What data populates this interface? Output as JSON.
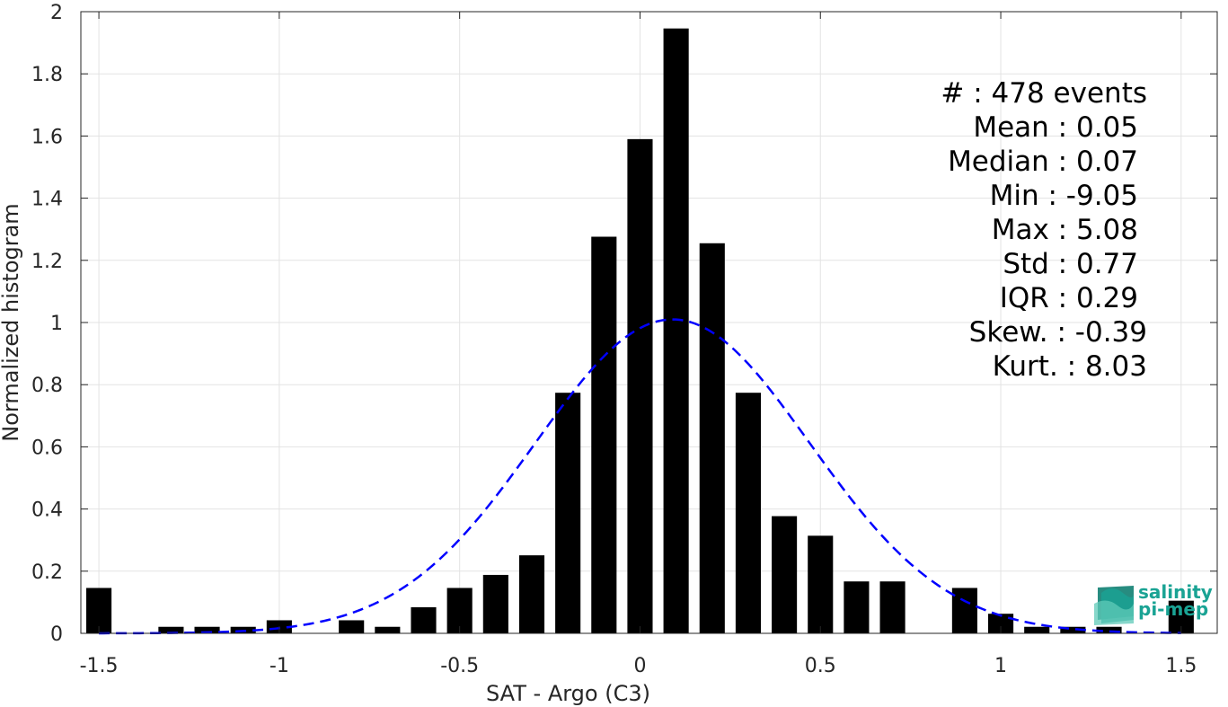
{
  "chart_data": {
    "type": "bar",
    "xlabel": "SAT - Argo (C3)",
    "ylabel": "Normalized histogram",
    "xlim": [
      -1.55,
      1.6
    ],
    "ylim": [
      0,
      2
    ],
    "grid": true,
    "x_ticks": [
      -1.5,
      -1,
      -0.5,
      0,
      0.5,
      1,
      1.5
    ],
    "x_tick_labels": [
      "-1.5",
      "-1",
      "-0.5",
      "0",
      "0.5",
      "1",
      "1.5"
    ],
    "y_ticks": [
      0,
      0.2,
      0.4,
      0.6,
      0.8,
      1,
      1.2,
      1.4,
      1.6,
      1.8,
      2
    ],
    "y_tick_labels": [
      "0",
      "0.2",
      "0.4",
      "0.6",
      "0.8",
      "1",
      "1.2",
      "1.4",
      "1.6",
      "1.8",
      "2"
    ],
    "bar_width": 0.07,
    "bars": [
      {
        "x": -1.5,
        "y": 0.146
      },
      {
        "x": -1.3,
        "y": 0.021
      },
      {
        "x": -1.2,
        "y": 0.021
      },
      {
        "x": -1.1,
        "y": 0.021
      },
      {
        "x": -1.0,
        "y": 0.042
      },
      {
        "x": -0.8,
        "y": 0.042
      },
      {
        "x": -0.7,
        "y": 0.021
      },
      {
        "x": -0.6,
        "y": 0.084
      },
      {
        "x": -0.5,
        "y": 0.146
      },
      {
        "x": -0.4,
        "y": 0.188
      },
      {
        "x": -0.3,
        "y": 0.251
      },
      {
        "x": -0.2,
        "y": 0.774
      },
      {
        "x": -0.1,
        "y": 1.276
      },
      {
        "x": 0.0,
        "y": 1.59
      },
      {
        "x": 0.1,
        "y": 1.946
      },
      {
        "x": 0.2,
        "y": 1.255
      },
      {
        "x": 0.3,
        "y": 0.774
      },
      {
        "x": 0.4,
        "y": 0.377
      },
      {
        "x": 0.5,
        "y": 0.314
      },
      {
        "x": 0.6,
        "y": 0.167
      },
      {
        "x": 0.7,
        "y": 0.167
      },
      {
        "x": 0.9,
        "y": 0.146
      },
      {
        "x": 1.0,
        "y": 0.063
      },
      {
        "x": 1.1,
        "y": 0.021
      },
      {
        "x": 1.2,
        "y": 0.021
      },
      {
        "x": 1.3,
        "y": 0.021
      },
      {
        "x": 1.5,
        "y": 0.105
      }
    ],
    "fit_curve": {
      "type": "gaussian",
      "mean": 0.09,
      "sigma": 0.38,
      "peak": 1.01,
      "x_range": [
        -1.5,
        1.5
      ],
      "color": "#0000ff",
      "style": "dashed"
    },
    "bar_color": "#000000"
  },
  "stats": [
    "#  : 478 events",
    "Mean : 0.05",
    "Median : 0.07",
    "Min : -9.05",
    "Max : 5.08",
    "Std : 0.77",
    "IQR : 0.29",
    "Skew. : -0.39",
    "Kurt. : 8.03"
  ],
  "logo": {
    "line1": "salinity",
    "line2": "pi-mep",
    "color": "#1aa394"
  }
}
